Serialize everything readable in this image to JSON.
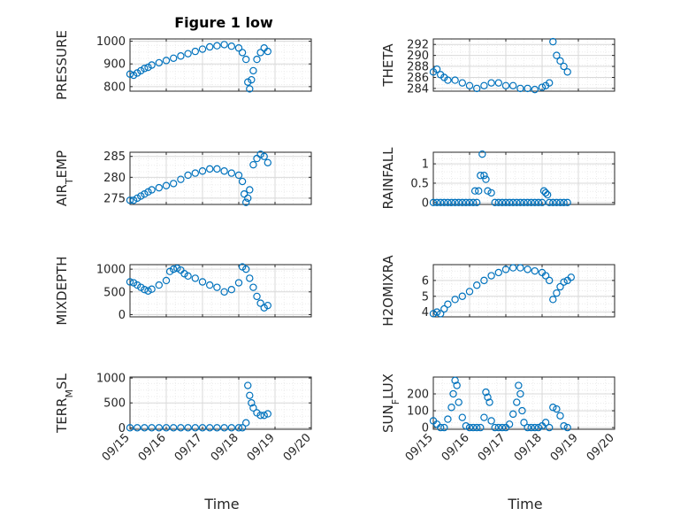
{
  "figure": {
    "title": "Figure 1 low",
    "xlabel": "Time"
  },
  "colors": {
    "marker": "#0072BD",
    "axis": "#262626",
    "grid": "#d9d9d9",
    "minorgrid": "#ececec"
  },
  "chart_data": [
    {
      "type": "scatter",
      "ylabel": "PRESSURE",
      "ylim": [
        780,
        1010
      ],
      "yticks": [
        800,
        900,
        1000
      ],
      "ytick_labels": [
        "800",
        "900",
        "1000"
      ],
      "xlim": [
        0,
        5
      ],
      "xticks": [
        0,
        1,
        2,
        3,
        4,
        5
      ],
      "xtick_labels": [],
      "x": [
        0.0,
        0.1,
        0.2,
        0.3,
        0.4,
        0.5,
        0.6,
        0.8,
        1.0,
        1.2,
        1.4,
        1.6,
        1.8,
        2.0,
        2.2,
        2.4,
        2.6,
        2.8,
        3.0,
        3.1,
        3.2,
        3.25,
        3.3,
        3.35,
        3.4,
        3.5,
        3.6,
        3.7,
        3.8
      ],
      "y": [
        855,
        850,
        860,
        870,
        880,
        885,
        895,
        905,
        915,
        925,
        935,
        945,
        955,
        965,
        975,
        980,
        985,
        978,
        970,
        950,
        920,
        820,
        790,
        830,
        870,
        920,
        950,
        970,
        955
      ]
    },
    {
      "type": "scatter",
      "ylabel": "THETA",
      "ylim": [
        283.5,
        293
      ],
      "yticks": [
        284,
        286,
        288,
        290,
        292
      ],
      "ytick_labels": [
        "284",
        "286",
        "288",
        "290",
        "292"
      ],
      "xlim": [
        0,
        5
      ],
      "xticks": [
        0,
        1,
        2,
        3,
        4,
        5
      ],
      "xtick_labels": [],
      "x": [
        0.0,
        0.1,
        0.2,
        0.3,
        0.4,
        0.6,
        0.8,
        1.0,
        1.2,
        1.4,
        1.6,
        1.8,
        2.0,
        2.2,
        2.4,
        2.6,
        2.8,
        3.0,
        3.1,
        3.2,
        3.3,
        3.4,
        3.5,
        3.6,
        3.7
      ],
      "y": [
        287,
        287.5,
        286.5,
        286,
        285.5,
        285.5,
        285,
        284.5,
        284,
        284.5,
        285,
        285,
        284.5,
        284.5,
        284,
        284,
        283.8,
        284.2,
        284.5,
        285,
        292.5,
        290,
        289,
        288,
        287
      ]
    },
    {
      "type": "scatter",
      "ylabel": "AIR_TEMP",
      "ylim": [
        273.5,
        286
      ],
      "yticks": [
        275,
        280,
        285
      ],
      "ytick_labels": [
        "275",
        "280",
        "285"
      ],
      "xlim": [
        0,
        5
      ],
      "xticks": [
        0,
        1,
        2,
        3,
        4,
        5
      ],
      "xtick_labels": [],
      "x": [
        0.0,
        0.1,
        0.2,
        0.3,
        0.4,
        0.5,
        0.6,
        0.8,
        1.0,
        1.2,
        1.4,
        1.6,
        1.8,
        2.0,
        2.2,
        2.4,
        2.6,
        2.8,
        3.0,
        3.1,
        3.15,
        3.2,
        3.25,
        3.3,
        3.4,
        3.5,
        3.6,
        3.7,
        3.8
      ],
      "y": [
        274.5,
        274.5,
        275,
        275.5,
        276,
        276.5,
        277,
        277.5,
        278,
        278.5,
        279.5,
        280.5,
        281,
        281.5,
        282,
        282,
        281.5,
        281,
        280.5,
        279,
        276,
        274,
        275,
        277,
        283,
        284.5,
        285.5,
        285,
        283.5
      ]
    },
    {
      "type": "scatter",
      "ylabel": "RAINFALL",
      "ylim": [
        -0.05,
        1.3
      ],
      "yticks": [
        0,
        0.5,
        1
      ],
      "ytick_labels": [
        "0",
        "0.5",
        "1"
      ],
      "xlim": [
        0,
        5
      ],
      "xticks": [
        0,
        1,
        2,
        3,
        4,
        5
      ],
      "xtick_labels": [],
      "x": [
        0.0,
        0.1,
        0.2,
        0.3,
        0.4,
        0.5,
        0.6,
        0.7,
        0.8,
        0.9,
        1.0,
        1.1,
        1.15,
        1.2,
        1.25,
        1.3,
        1.35,
        1.4,
        1.45,
        1.5,
        1.6,
        1.7,
        1.8,
        1.9,
        2.0,
        2.1,
        2.2,
        2.3,
        2.4,
        2.5,
        2.6,
        2.7,
        2.8,
        2.9,
        3.0,
        3.05,
        3.1,
        3.15,
        3.2,
        3.3,
        3.4,
        3.5,
        3.6,
        3.7
      ],
      "y": [
        0,
        0,
        0,
        0,
        0,
        0,
        0,
        0,
        0,
        0,
        0,
        0,
        0.3,
        0,
        0.3,
        0.7,
        1.25,
        0.7,
        0.6,
        0.3,
        0.25,
        0,
        0,
        0,
        0,
        0,
        0,
        0,
        0,
        0,
        0,
        0,
        0,
        0,
        0,
        0.3,
        0.25,
        0.2,
        0,
        0,
        0,
        0,
        0,
        0
      ]
    },
    {
      "type": "scatter",
      "ylabel": "MIXDEPTH",
      "ylim": [
        -50,
        1100
      ],
      "yticks": [
        0,
        500,
        1000
      ],
      "ytick_labels": [
        "0",
        "500",
        "1000"
      ],
      "xlim": [
        0,
        5
      ],
      "xticks": [
        0,
        1,
        2,
        3,
        4,
        5
      ],
      "xtick_labels": [],
      "x": [
        0.0,
        0.1,
        0.2,
        0.3,
        0.4,
        0.5,
        0.6,
        0.8,
        1.0,
        1.1,
        1.2,
        1.3,
        1.4,
        1.5,
        1.6,
        1.8,
        2.0,
        2.2,
        2.4,
        2.6,
        2.8,
        3.0,
        3.1,
        3.2,
        3.3,
        3.4,
        3.5,
        3.6,
        3.7,
        3.8
      ],
      "y": [
        720,
        700,
        650,
        600,
        550,
        520,
        560,
        650,
        750,
        950,
        1000,
        1020,
        980,
        900,
        850,
        800,
        720,
        650,
        600,
        500,
        550,
        700,
        1050,
        1000,
        800,
        600,
        400,
        250,
        150,
        200
      ]
    },
    {
      "type": "scatter",
      "ylabel": "H2OMIXRA",
      "ylim": [
        3.7,
        7.0
      ],
      "yticks": [
        4,
        5,
        6
      ],
      "ytick_labels": [
        "4",
        "5",
        "6"
      ],
      "xlim": [
        0,
        5
      ],
      "xticks": [
        0,
        1,
        2,
        3,
        4,
        5
      ],
      "xtick_labels": [],
      "x": [
        0.0,
        0.1,
        0.2,
        0.3,
        0.4,
        0.6,
        0.8,
        1.0,
        1.2,
        1.4,
        1.6,
        1.8,
        2.0,
        2.2,
        2.4,
        2.6,
        2.8,
        3.0,
        3.1,
        3.2,
        3.3,
        3.4,
        3.5,
        3.6,
        3.7,
        3.8
      ],
      "y": [
        3.9,
        4.0,
        3.9,
        4.2,
        4.5,
        4.8,
        5.0,
        5.3,
        5.7,
        6.0,
        6.3,
        6.5,
        6.7,
        6.8,
        6.8,
        6.7,
        6.6,
        6.5,
        6.3,
        6.0,
        4.8,
        5.2,
        5.6,
        5.9,
        6.0,
        6.2
      ]
    },
    {
      "type": "scatter",
      "ylabel": "TERR_MSL",
      "ylim": [
        -30,
        1020
      ],
      "yticks": [
        0,
        500,
        1000
      ],
      "ytick_labels": [
        "0",
        "500",
        "1000"
      ],
      "xlim": [
        0,
        5
      ],
      "xticks": [
        0,
        1,
        2,
        3,
        4,
        5
      ],
      "xtick_labels": [
        "09/15",
        "09/16",
        "09/17",
        "09/18",
        "09/19",
        "09/20"
      ],
      "x": [
        0.0,
        0.2,
        0.4,
        0.6,
        0.8,
        1.0,
        1.2,
        1.4,
        1.6,
        1.8,
        2.0,
        2.2,
        2.4,
        2.6,
        2.8,
        3.0,
        3.1,
        3.2,
        3.25,
        3.3,
        3.35,
        3.4,
        3.5,
        3.6,
        3.7,
        3.8
      ],
      "y": [
        0,
        0,
        0,
        0,
        0,
        0,
        0,
        0,
        0,
        0,
        0,
        0,
        0,
        0,
        0,
        0,
        0,
        100,
        850,
        650,
        500,
        400,
        300,
        250,
        250,
        280
      ]
    },
    {
      "type": "scatter",
      "ylabel": "SUN_FLUX",
      "ylim": [
        -10,
        300
      ],
      "yticks": [
        0,
        100,
        200
      ],
      "ytick_labels": [
        "0",
        "100",
        "200"
      ],
      "xlim": [
        0,
        5
      ],
      "xticks": [
        0,
        1,
        2,
        3,
        4,
        5
      ],
      "xtick_labels": [
        "09/15",
        "09/16",
        "09/17",
        "09/18",
        "09/19",
        "09/20"
      ],
      "x": [
        0.0,
        0.1,
        0.2,
        0.3,
        0.4,
        0.5,
        0.55,
        0.6,
        0.65,
        0.7,
        0.8,
        0.9,
        1.0,
        1.1,
        1.2,
        1.3,
        1.4,
        1.45,
        1.5,
        1.55,
        1.6,
        1.7,
        1.8,
        1.9,
        2.0,
        2.1,
        2.2,
        2.3,
        2.35,
        2.4,
        2.45,
        2.5,
        2.6,
        2.7,
        2.8,
        2.9,
        3.0,
        3.1,
        3.2,
        3.3,
        3.4,
        3.5,
        3.6,
        3.7
      ],
      "y": [
        40,
        20,
        0,
        0,
        50,
        120,
        200,
        280,
        250,
        150,
        60,
        10,
        0,
        0,
        0,
        0,
        60,
        210,
        180,
        150,
        40,
        0,
        0,
        0,
        0,
        20,
        80,
        150,
        250,
        200,
        100,
        30,
        0,
        0,
        0,
        0,
        10,
        30,
        0,
        120,
        110,
        70,
        10,
        0
      ]
    }
  ]
}
